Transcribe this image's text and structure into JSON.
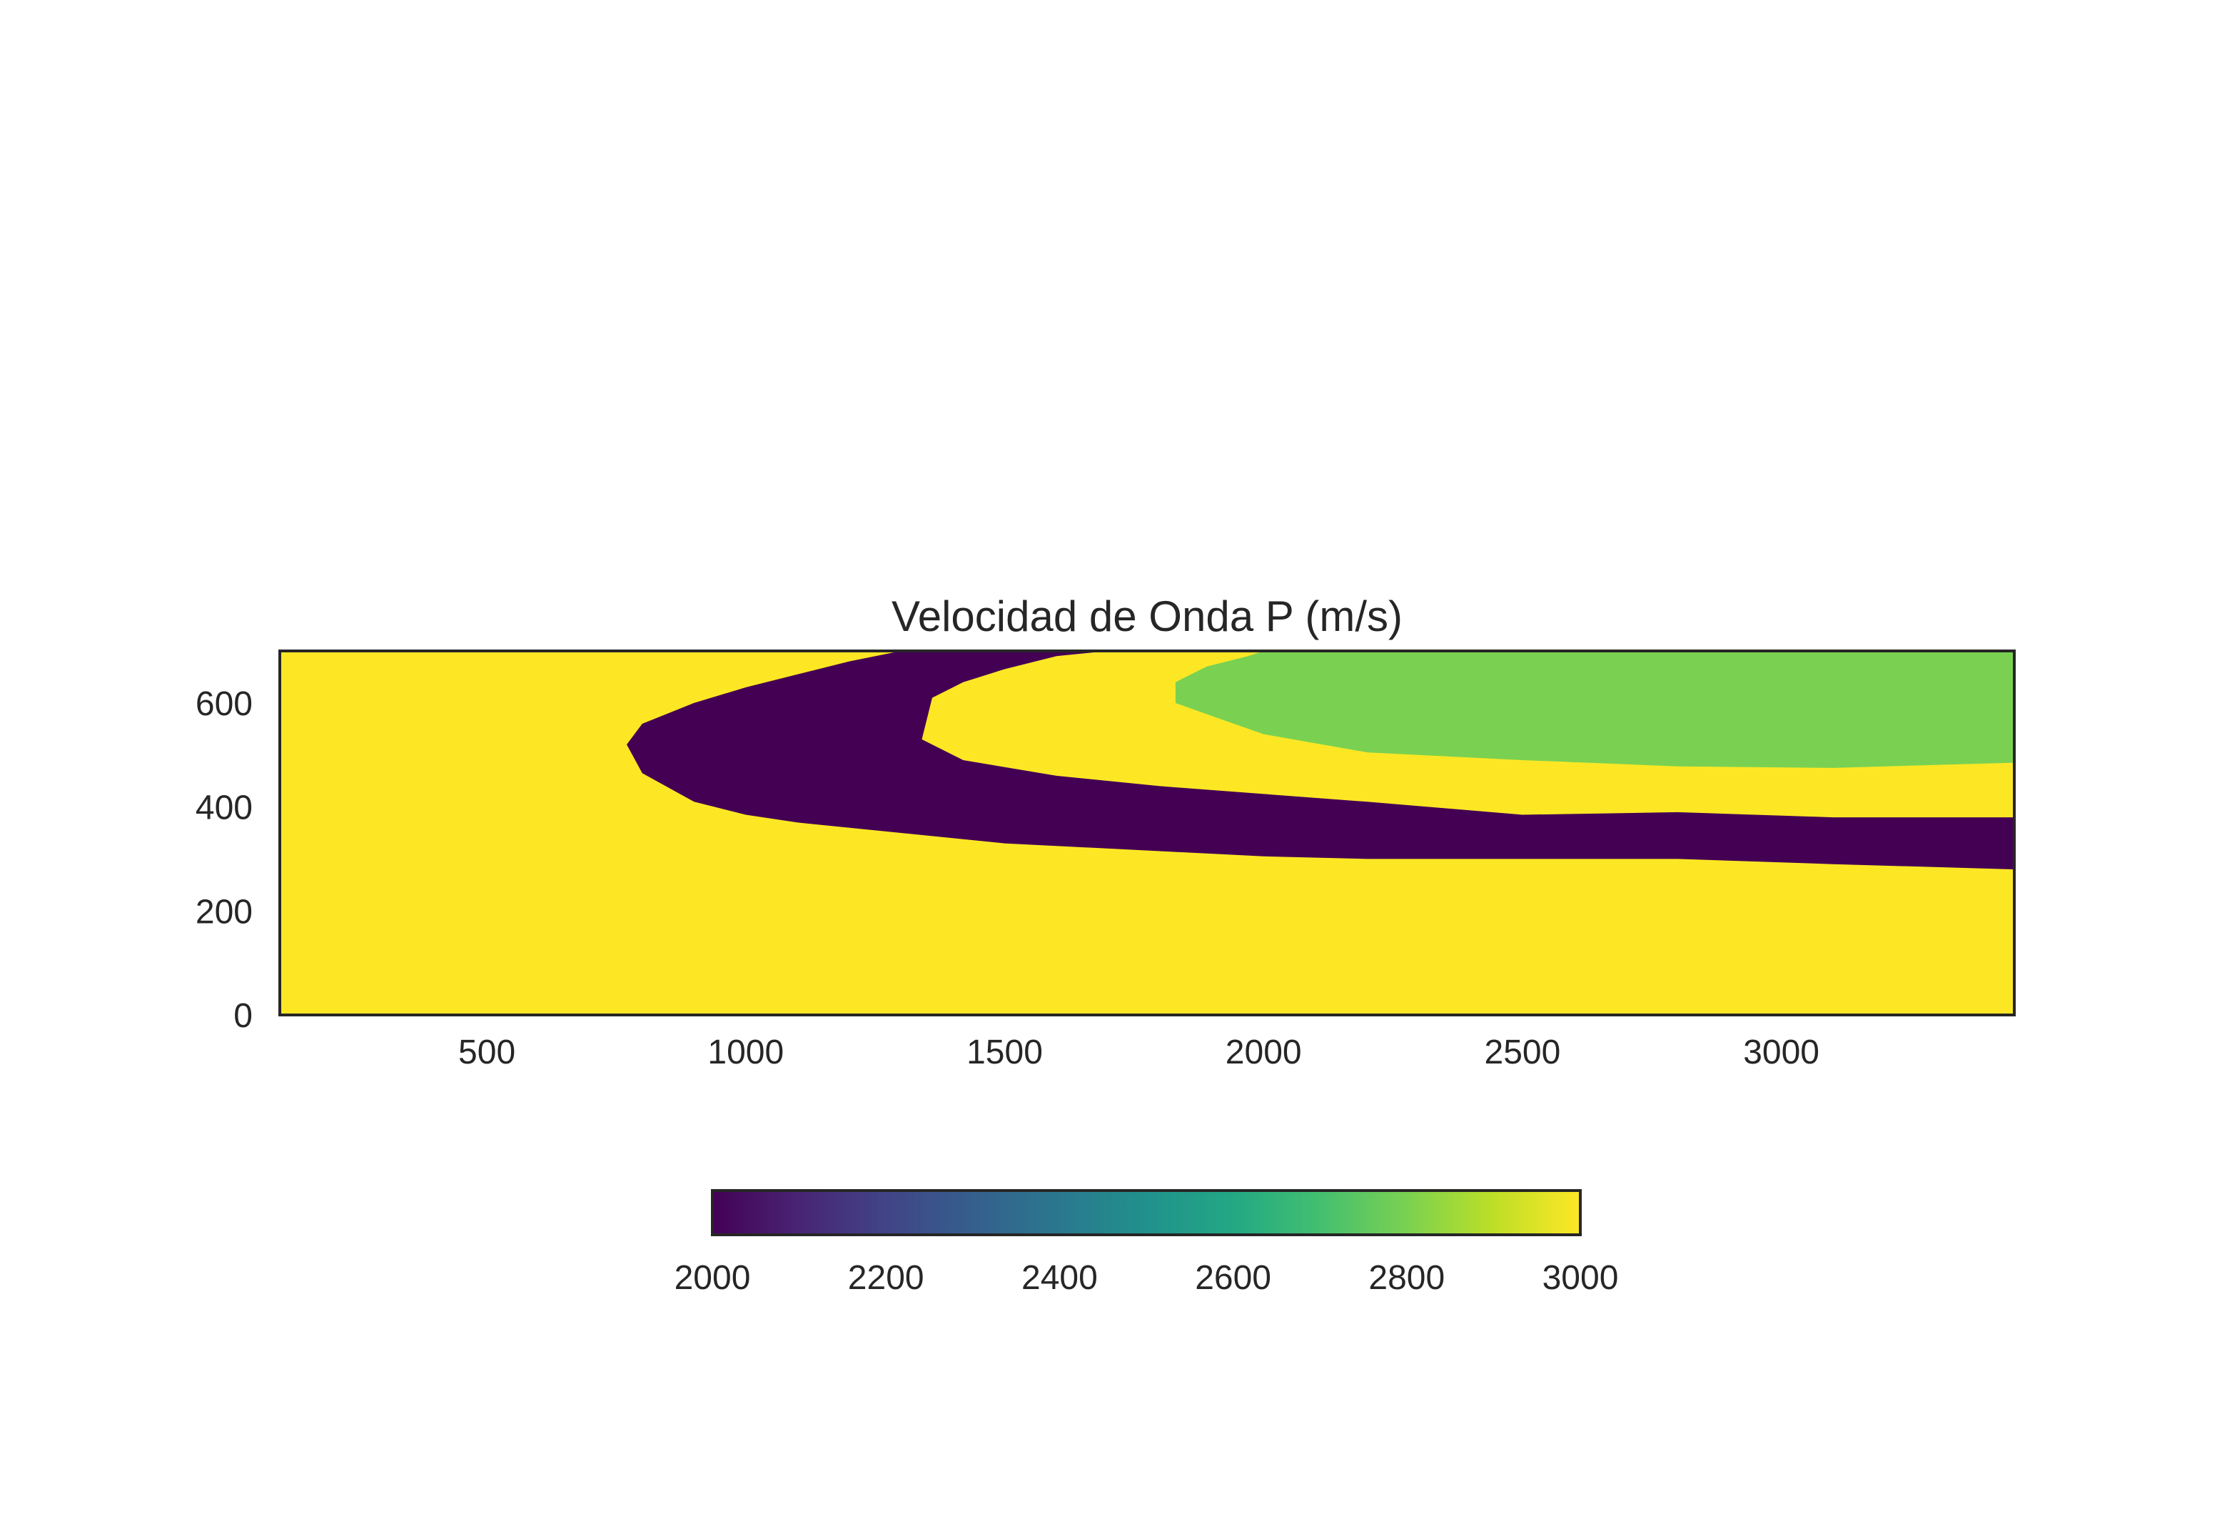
{
  "chart_data": {
    "type": "heatmap",
    "title": "Velocidad de Onda P (m/s)",
    "xlabel": "",
    "ylabel": "",
    "xlim": [
      100,
      3450
    ],
    "ylim": [
      0,
      700
    ],
    "x_ticks": [
      500,
      1000,
      1500,
      2000,
      2500,
      3000
    ],
    "y_ticks": [
      0,
      200,
      400,
      600
    ],
    "colormap": "viridis",
    "colorbar": {
      "range": [
        2000,
        3000
      ],
      "ticks": [
        2000,
        2200,
        2400,
        2600,
        2800,
        3000
      ],
      "orientation": "horizontal",
      "placement": "bottom"
    },
    "background_value": 3000,
    "regions": [
      {
        "name": "low-velocity-wedge",
        "value": 2000,
        "points": [
          [
            770,
            520
          ],
          [
            800,
            560
          ],
          [
            900,
            600
          ],
          [
            1000,
            630
          ],
          [
            1100,
            655
          ],
          [
            1200,
            680
          ],
          [
            1300,
            700
          ],
          [
            1700,
            700
          ],
          [
            1600,
            690
          ],
          [
            1500,
            665
          ],
          [
            1420,
            640
          ],
          [
            1360,
            610
          ],
          [
            1340,
            530
          ],
          [
            1420,
            490
          ],
          [
            1600,
            460
          ],
          [
            1800,
            440
          ],
          [
            2000,
            425
          ],
          [
            2200,
            410
          ],
          [
            2500,
            385
          ],
          [
            2800,
            390
          ],
          [
            3100,
            380
          ],
          [
            3450,
            380
          ],
          [
            3450,
            280
          ],
          [
            3100,
            290
          ],
          [
            2800,
            300
          ],
          [
            2500,
            300
          ],
          [
            2200,
            300
          ],
          [
            2000,
            305
          ],
          [
            1800,
            315
          ],
          [
            1500,
            330
          ],
          [
            1300,
            350
          ],
          [
            1100,
            370
          ],
          [
            1000,
            385
          ],
          [
            900,
            410
          ],
          [
            800,
            465
          ]
        ]
      },
      {
        "name": "upper-right-lens",
        "value": 2800,
        "points": [
          [
            1830,
            640
          ],
          [
            1890,
            670
          ],
          [
            1970,
            690
          ],
          [
            2000,
            700
          ],
          [
            3450,
            700
          ],
          [
            3450,
            485
          ],
          [
            3100,
            475
          ],
          [
            2800,
            478
          ],
          [
            2500,
            490
          ],
          [
            2200,
            505
          ],
          [
            2000,
            540
          ],
          [
            1900,
            575
          ],
          [
            1830,
            600
          ]
        ]
      }
    ]
  }
}
